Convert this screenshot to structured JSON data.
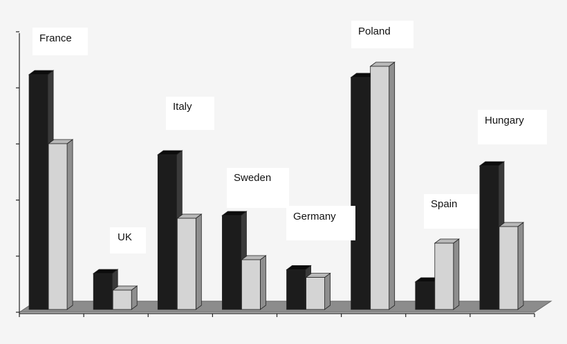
{
  "chart_data": {
    "type": "bar",
    "style": "3d-clustered",
    "categories": [
      "France",
      "UK",
      "Italy",
      "Sweden",
      "Germany",
      "Poland",
      "Spain",
      "Hungary"
    ],
    "series": [
      {
        "values": [
          4.25,
          0.65,
          2.8,
          1.7,
          0.72,
          4.2,
          0.5,
          2.6
        ]
      },
      {
        "values": [
          3.0,
          0.35,
          1.65,
          0.9,
          0.58,
          4.4,
          1.2,
          1.5
        ]
      }
    ],
    "ylim": [
      0,
      5
    ],
    "y_ticks": 5,
    "title": "",
    "xlabel": "",
    "ylabel": "",
    "grid": false,
    "legend": "none",
    "colors": {
      "series_front": [
        "#1c1c1c",
        "#d4d4d4"
      ],
      "series_top": [
        "#0c0c0c",
        "#b9b9b9"
      ],
      "series_side": [
        "#3a3a3a",
        "#8e8e8e"
      ],
      "floor": "#8c8c8c",
      "label_box": "#ffffff",
      "axis": "#222222",
      "background": "#f5f5f5"
    }
  }
}
